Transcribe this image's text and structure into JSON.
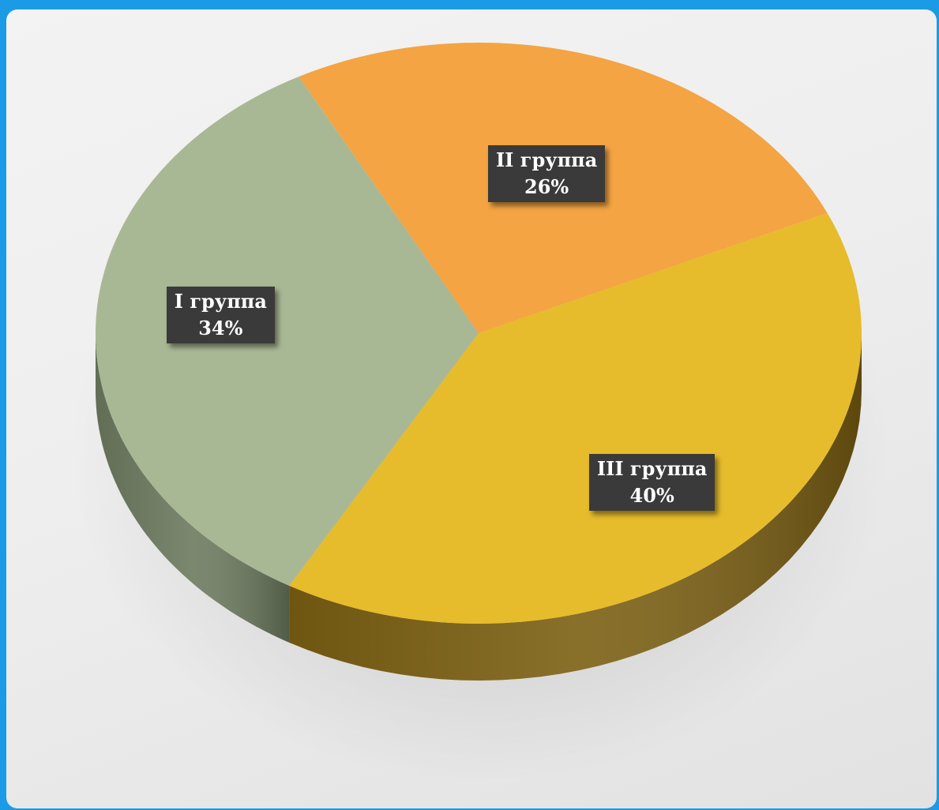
{
  "chart_data": {
    "type": "pie",
    "style": "3d",
    "categories": [
      "II группа",
      "III группа",
      "I группа"
    ],
    "values": [
      26,
      40,
      34
    ],
    "labels": [
      "26%",
      "40%",
      "34%"
    ],
    "colors": [
      "#f4a442",
      "#e6bc2c",
      "#a9b894"
    ],
    "side_colors": [
      "#b57624",
      "#7b5f12",
      "#6c7a5e"
    ],
    "title": "",
    "legend": "none"
  }
}
